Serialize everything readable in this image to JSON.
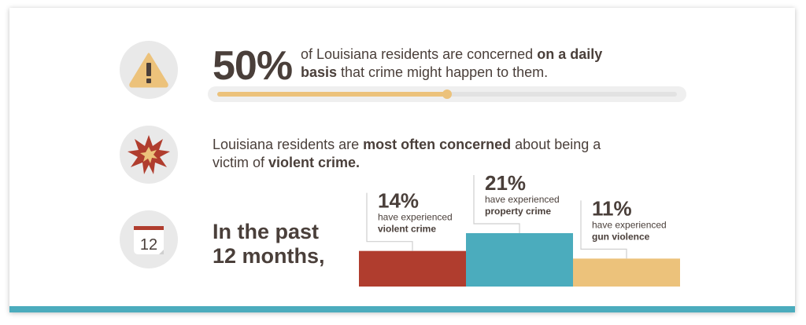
{
  "colors": {
    "text": "#4a3f3a",
    "teal": "#4bacbd",
    "red": "#b03d2e",
    "gold": "#ecc27b",
    "icon_bg": "#e9e9e9"
  },
  "stat1": {
    "percent": "50%",
    "value": 50,
    "text_before": "of Louisiana residents are concerned ",
    "text_bold": "on a daily basis",
    "text_after": " that crime might happen to them."
  },
  "stat2": {
    "text_before": "Louisiana residents are ",
    "text_bold1": "most often concerned",
    "text_mid": " about being a victim of ",
    "text_bold2": "violent crime."
  },
  "stat3": {
    "line1": "In the past",
    "line2": "12 months,",
    "calendar_number": "12"
  },
  "icons": {
    "warning": "warning-icon",
    "burst": "explosion-icon",
    "calendar": "calendar-icon"
  },
  "chart_data": {
    "type": "bar",
    "categories": [
      "violent crime",
      "property crime",
      "gun violence"
    ],
    "values": [
      14,
      21,
      11
    ],
    "labels": [
      "14%",
      "21%",
      "11%"
    ],
    "sublabel": "have experienced",
    "colors": [
      "#b03d2e",
      "#4bacbd",
      "#ecc27b"
    ],
    "ylim": [
      0,
      21
    ]
  }
}
